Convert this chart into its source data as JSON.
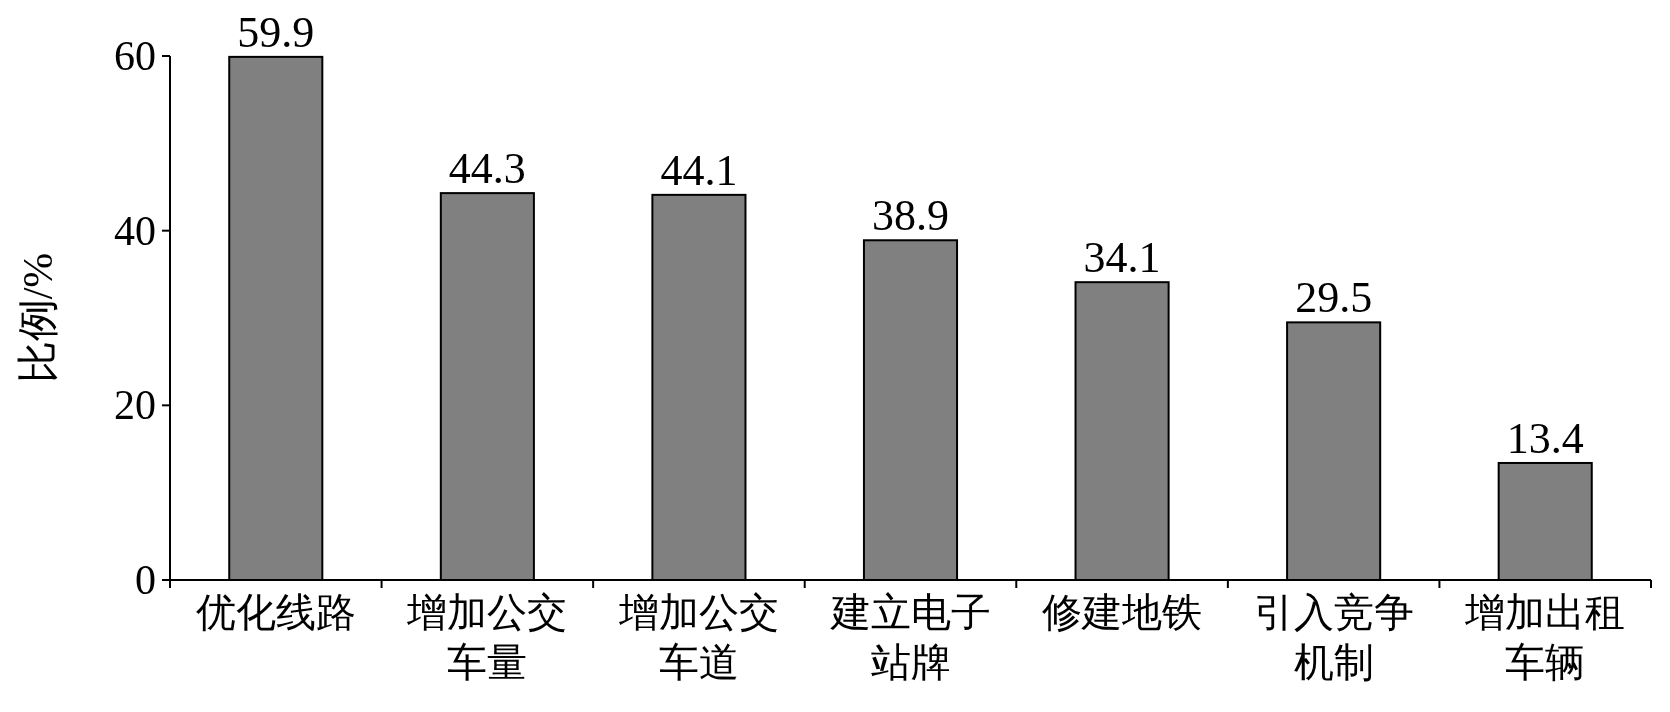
{
  "chart_data": {
    "type": "bar",
    "ylabel": "比例/%",
    "categories": [
      "优化线路",
      "增加公交车量",
      "增加公交车道",
      "建立电子站牌",
      "修建地铁",
      "引入竞争机制",
      "增加出租车辆"
    ],
    "values": [
      59.9,
      44.3,
      44.1,
      38.9,
      34.1,
      29.5,
      13.4
    ],
    "color": "#808080",
    "ylim": [
      0,
      60
    ],
    "yticks": [
      0,
      20,
      40,
      60
    ],
    "data_labels": true,
    "grid": false
  }
}
